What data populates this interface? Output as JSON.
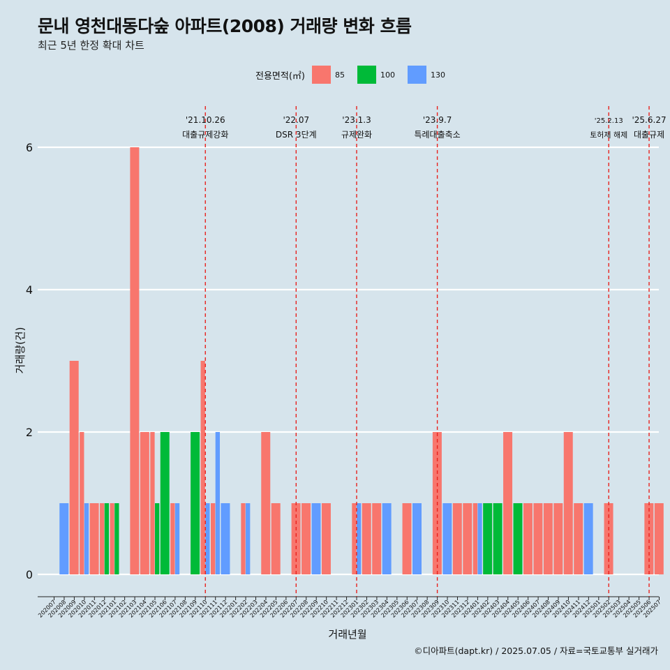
{
  "title": "문내 영천대동다숲 아파트(2008) 거래량 변화 흐름",
  "subtitle": "최근 5년 한정 확대 차트",
  "legend": {
    "title": "전용면적(㎡)",
    "items": [
      {
        "label": "85",
        "color": "#F8766D"
      },
      {
        "label": "100",
        "color": "#00BA38"
      },
      {
        "label": "130",
        "color": "#619CFF"
      }
    ]
  },
  "caption": "©디아파트(dapt.kr) / 2025.07.05 / 자료=국토교통부 실거래가",
  "chart_data": {
    "type": "bar",
    "stacking": "dodge",
    "xlabel": "거래년월",
    "ylabel": "거래량(건)",
    "ylim": [
      0,
      6
    ],
    "yticks": [
      0,
      2,
      4,
      6
    ],
    "grid": "horizontal only",
    "legend_position": "top",
    "categories": [
      "202007",
      "202008",
      "202009",
      "202010",
      "202011",
      "202012",
      "202101",
      "202102",
      "202103",
      "202104",
      "202105",
      "202106",
      "202107",
      "202108",
      "202109",
      "202110",
      "202111",
      "202112",
      "202201",
      "202202",
      "202203",
      "202204",
      "202205",
      "202206",
      "202207",
      "202208",
      "202209",
      "202210",
      "202211",
      "202212",
      "202301",
      "202302",
      "202303",
      "202304",
      "202305",
      "202306",
      "202307",
      "202308",
      "202309",
      "202310",
      "202311",
      "202312",
      "202401",
      "202402",
      "202403",
      "202404",
      "202405",
      "202406",
      "202407",
      "202408",
      "202409",
      "202410",
      "202411",
      "202412",
      "202501",
      "202502",
      "202503",
      "202504",
      "202505",
      "202506",
      "202507"
    ],
    "series": [
      {
        "name": "85",
        "color": "#F8766D",
        "points": [
          [
            "202009",
            3
          ],
          [
            "202010",
            2
          ],
          [
            "202011",
            1
          ],
          [
            "202012",
            1
          ],
          [
            "202101",
            1
          ],
          [
            "202103",
            6
          ],
          [
            "202104",
            2
          ],
          [
            "202105",
            2
          ],
          [
            "202107",
            1
          ],
          [
            "202110",
            3
          ],
          [
            "202111",
            1
          ],
          [
            "202202",
            1
          ],
          [
            "202204",
            2
          ],
          [
            "202205",
            1
          ],
          [
            "202207",
            1
          ],
          [
            "202208",
            1
          ],
          [
            "202210",
            1
          ],
          [
            "202301",
            1
          ],
          [
            "202302",
            1
          ],
          [
            "202303",
            1
          ],
          [
            "202306",
            1
          ],
          [
            "202309",
            2
          ],
          [
            "202311",
            1
          ],
          [
            "202312",
            1
          ],
          [
            "202401",
            1
          ],
          [
            "202404",
            2
          ],
          [
            "202406",
            1
          ],
          [
            "202407",
            1
          ],
          [
            "202408",
            1
          ],
          [
            "202409",
            1
          ],
          [
            "202410",
            2
          ],
          [
            "202411",
            1
          ],
          [
            "202502",
            1
          ],
          [
            "202506",
            1
          ],
          [
            "202507",
            1
          ]
        ]
      },
      {
        "name": "100",
        "color": "#00BA38",
        "points": [
          [
            "202012",
            1
          ],
          [
            "202101",
            1
          ],
          [
            "202105",
            1
          ],
          [
            "202106",
            2
          ],
          [
            "202109",
            2
          ],
          [
            "202402",
            1
          ],
          [
            "202403",
            1
          ],
          [
            "202405",
            1
          ]
        ]
      },
      {
        "name": "130",
        "color": "#619CFF",
        "points": [
          [
            "202008",
            1
          ],
          [
            "202010",
            1
          ],
          [
            "202107",
            1
          ],
          [
            "202110",
            1
          ],
          [
            "202111",
            2
          ],
          [
            "202112",
            1
          ],
          [
            "202202",
            1
          ],
          [
            "202209",
            1
          ],
          [
            "202301",
            1
          ],
          [
            "202304",
            1
          ],
          [
            "202307",
            1
          ],
          [
            "202310",
            1
          ],
          [
            "202401",
            1
          ],
          [
            "202412",
            1
          ]
        ]
      }
    ],
    "events": [
      {
        "date": "'21.10.26",
        "label": "대출규제강화",
        "month": "202110"
      },
      {
        "date": "'22.07",
        "label": "DSR 3단계",
        "month": "202207"
      },
      {
        "date": "'23.1.3",
        "label": "규제완화",
        "month": "202301"
      },
      {
        "date": "'23.9.7",
        "label": "특례대출축소",
        "month": "202309"
      },
      {
        "date": "'25.2.13",
        "label": "토허제 해제",
        "month": "202502"
      },
      {
        "date": "'25.6.27",
        "label": "대출규제",
        "month": "202506"
      }
    ]
  }
}
